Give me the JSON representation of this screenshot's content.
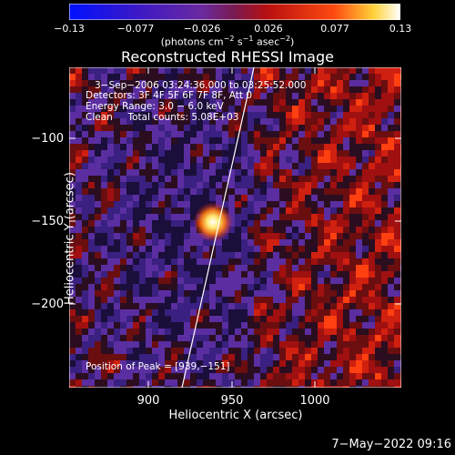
{
  "colorbar": {
    "ticks": [
      "−0.13",
      "−0.077",
      "−0.026",
      "0.026",
      "0.077",
      "0.13"
    ],
    "units_prefix": "(photons cm",
    "units_sup1": "−2",
    "units_mid": " s",
    "units_sup2": "−1",
    "units_mid2": " asec",
    "units_sup3": "−2",
    "units_suffix": ")"
  },
  "chart_data": {
    "type": "heatmap",
    "title": "Reconstructed RHESSI Image",
    "xlabel": "Heliocentric X (arcsec)",
    "ylabel": "Heliocentric Y (arcsec)",
    "xlim": [
      856,
      1044
    ],
    "ylim": [
      -250,
      -62
    ],
    "xticks": [
      "900",
      "950",
      "1000"
    ],
    "yticks": [
      "−100",
      "−150",
      "−200"
    ],
    "color_range": [
      -0.13,
      0.13
    ],
    "peak": {
      "x": 939,
      "y": -151
    }
  },
  "info": {
    "time": "3−Sep−2006 03:24:36.000 to 03:25:52.000",
    "detectors": "Detectors: 3F 4F 5F 6F 7F 8F, Att 0",
    "energy": "Energy Range: 3.0 − 6.0 keV",
    "clean": "Clean     Total counts: 5.08E+03",
    "peak": "Position of Peak = [939,−151]"
  },
  "footer": {
    "date": "7−May−2022 09:16"
  }
}
